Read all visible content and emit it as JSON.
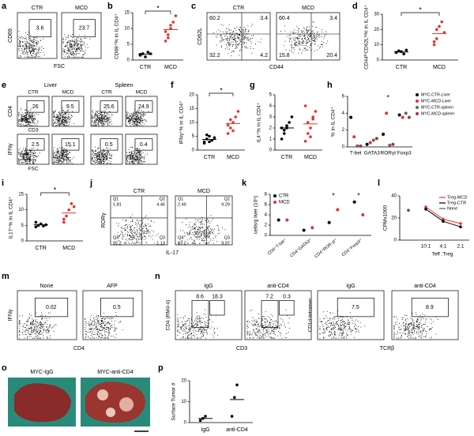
{
  "panels": {
    "a": {
      "label": "a",
      "plots": [
        {
          "title": "CTR",
          "gates": [
            3.6
          ]
        },
        {
          "title": "MCD",
          "gates": [
            23.7
          ]
        }
      ],
      "ylabel": "CD69",
      "xlabel": "FSC"
    },
    "b": {
      "label": "b",
      "ylabel": "CD69⁺% in IL CD4⁺",
      "groups": [
        "CTR",
        "MCD"
      ],
      "colors": [
        "#000000",
        "#e8312f"
      ],
      "values": [
        [
          1.5,
          2,
          1,
          2.5,
          2,
          1.8
        ],
        [
          6,
          8,
          10,
          12,
          14,
          9,
          7,
          11
        ]
      ],
      "ylim": [
        0,
        15
      ],
      "yticks": [
        0,
        5,
        10,
        15
      ],
      "significance": "*"
    },
    "c": {
      "label": "c",
      "plots": [
        {
          "title": "CTR",
          "gates": [
            60.2,
            3.4,
            32.2,
            4.2
          ]
        },
        {
          "title": "MCD",
          "gates": [
            60.4,
            3.4,
            15.8,
            20.4
          ]
        }
      ],
      "ylabel": "CD62L",
      "xlabel": "CD44"
    },
    "d": {
      "label": "d",
      "ylabel": "CD44ʰⁱCD62Lˡᵒ% in IL CD4⁺",
      "groups": [
        "CTR",
        "MCD"
      ],
      "colors": [
        "#000000",
        "#e8312f"
      ],
      "values": [
        [
          5,
          6,
          5.5,
          4,
          6.5,
          5
        ],
        [
          10,
          14,
          22,
          25,
          18,
          12,
          20
        ]
      ],
      "ylim": [
        0,
        30
      ],
      "yticks": [
        0,
        10,
        20,
        30
      ],
      "significance": "*"
    },
    "e": {
      "label": "e",
      "tissues": [
        "Liver",
        "Spleen"
      ],
      "top": [
        {
          "title": "CTR",
          "gates": [
            26
          ]
        },
        {
          "title": "MCD",
          "gates": [
            9.5
          ]
        },
        {
          "title": "CTR",
          "gates": [
            25.6
          ]
        },
        {
          "title": "MCD",
          "gates": [
            24.9
          ]
        }
      ],
      "bottom": [
        {
          "gates": [
            2.5
          ]
        },
        {
          "gates": [
            15.1
          ]
        },
        {
          "gates": [
            0.5
          ]
        },
        {
          "gates": [
            0.4
          ]
        }
      ],
      "top_ylabel": "CD4",
      "top_xlabel": "CD3",
      "bottom_ylabel": "IFNγ",
      "bottom_xlabel": "FSC"
    },
    "f": {
      "label": "f",
      "ylabel": "IFNγ⁺% in IL CD4⁺",
      "groups": [
        "CTR",
        "MCD"
      ],
      "colors": [
        "#000000",
        "#e8312f"
      ],
      "values": [
        [
          3,
          4,
          5,
          3.5,
          4.5,
          2.5,
          5.5,
          3
        ],
        [
          6,
          8,
          10,
          12,
          14,
          9,
          11,
          7
        ]
      ],
      "ylim": [
        0,
        20
      ],
      "yticks": [
        0,
        5,
        10,
        15,
        20
      ],
      "significance": "*"
    },
    "g": {
      "label": "g",
      "ylabel": "IL4⁺% in IL CD4⁺",
      "groups": [
        "CTR",
        "MCD"
      ],
      "colors": [
        "#000000",
        "#e8312f"
      ],
      "values": [
        [
          1,
          1.5,
          2,
          2.5,
          3,
          2,
          1.8,
          2.2
        ],
        [
          0.8,
          1.5,
          2,
          3,
          3.5,
          4,
          2.5,
          1.2,
          2.8
        ]
      ],
      "ylim": [
        0,
        5
      ],
      "yticks": [
        0,
        1,
        2,
        3,
        4,
        5
      ]
    },
    "h": {
      "label": "h",
      "ylabel": "% in IL CD4⁺",
      "categories": [
        "T-bet",
        "GATA3",
        "RORγt",
        "Foxp3"
      ],
      "series": [
        {
          "name": "MYC-CTR-Liver",
          "color": "#000000",
          "values": [
            3.5,
            0.3,
            1.5,
            3.8
          ]
        },
        {
          "name": "MYC-MCD-Liver",
          "color": "#e8312f",
          "values": [
            1.2,
            0.5,
            4,
            3.5
          ]
        },
        {
          "name": "MYC-CTR-spleen",
          "color": "#666666",
          "values": [
            0.1,
            0.8,
            0.2,
            4
          ]
        },
        {
          "name": "MYC-MCD-spleen",
          "color": "#b03030",
          "values": [
            0.1,
            1,
            0.3,
            3.5
          ]
        }
      ],
      "ylim": [
        0,
        6
      ],
      "yticks": [
        0,
        2,
        4,
        6
      ],
      "significance": [
        null,
        null,
        "*",
        null
      ]
    },
    "i": {
      "label": "i",
      "ylabel": "IL17⁺% in IL CD4⁺",
      "groups": [
        "CTR",
        "MCD"
      ],
      "colors": [
        "#000000",
        "#e8312f"
      ],
      "values": [
        [
          4.5,
          5,
          5.5,
          4.8,
          5.2,
          6
        ],
        [
          7,
          8,
          10,
          12,
          11,
          6
        ]
      ],
      "ylim": [
        0,
        15
      ],
      "yticks": [
        0,
        5,
        10,
        15
      ],
      "significance": "*"
    },
    "j": {
      "label": "j",
      "plots": [
        {
          "title": "CTR",
          "quadrants": [
            {
              "name": "Q1",
              "value": 1.81
            },
            {
              "name": "Q2",
              "value": 4.46
            },
            {
              "name": "Q4",
              "value": 92.2
            },
            {
              "name": "Q3",
              "value": 1.13
            }
          ]
        },
        {
          "title": "MCD",
          "quadrants": [
            {
              "name": "Q1",
              "value": 2.49
            },
            {
              "name": "Q2",
              "value": 9.29
            },
            {
              "name": "Q4",
              "value": 87.2
            },
            {
              "name": "Q3",
              "value": 9.97
            }
          ]
        }
      ],
      "ylabel": "RORγ",
      "xlabel": "IL-17"
    },
    "k": {
      "label": "k",
      "ylabel": "cells/g liver (10⁵)",
      "categories": [
        "CD4⁺T-bet⁺",
        "CD4⁺GATA3⁺",
        "CD4⁺ROR-γt⁺",
        "CD4⁺Foxp3⁺"
      ],
      "series": [
        {
          "name": "CTR",
          "color": "#000000",
          "values": [
            3,
            1,
            2.5,
            6.5
          ]
        },
        {
          "name": "MCD",
          "color": "#e8312f",
          "values": [
            3,
            1.5,
            5,
            4
          ]
        }
      ],
      "ylim": [
        0,
        8
      ],
      "yticks": [
        0,
        2,
        4,
        6,
        8
      ],
      "significance": [
        null,
        null,
        "*",
        "*"
      ]
    },
    "l": {
      "label": "l",
      "ylabel": "CPMx1000",
      "xlabel": "Teff :Treg",
      "categories": [
        null,
        "10:1",
        "4:1",
        "2:1"
      ],
      "series": [
        {
          "name": "Treg-MCD",
          "color": "#e8312f",
          "values": [
            null,
            30,
            19,
            15
          ]
        },
        {
          "name": "Treg-CTR",
          "color": "#000000",
          "values": [
            null,
            28,
            17,
            12
          ]
        },
        {
          "name": "None",
          "color": "#555555",
          "values": [
            27,
            null,
            null,
            null
          ]
        }
      ],
      "ylim": [
        0,
        40
      ],
      "yticks": [
        0,
        20,
        40
      ]
    },
    "m": {
      "label": "m",
      "plots": [
        {
          "title": "None",
          "gates": [
            0.02
          ]
        },
        {
          "title": "AFP",
          "gates": [
            0.5
          ]
        }
      ],
      "ylabel": "IFNγ",
      "xlabel": "CD4"
    },
    "n": {
      "label": "n",
      "plots": [
        {
          "title": "IgG",
          "gates": [
            8.6,
            18.3
          ]
        },
        {
          "title": "anti-CD4",
          "gates": [
            7.2,
            0.3
          ]
        },
        {
          "title": "IgG",
          "gates": [
            7.5
          ]
        },
        {
          "title": "anti-CD4",
          "gates": [
            8.9
          ]
        }
      ],
      "ylabels": [
        "CD4 (RM4-4)",
        "CD1d-tetramer"
      ],
      "xlabels": [
        "CD3",
        "TCRβ"
      ]
    },
    "o": {
      "label": "o",
      "titles": [
        "MYC-IgG",
        "MYC-anti-CD4"
      ]
    },
    "p": {
      "label": "p",
      "ylabel": "Surface Tumor #",
      "groups": [
        "IgG",
        "anti-CD4"
      ],
      "colors": [
        "#000000",
        "#000000"
      ],
      "values": [
        [
          1,
          2,
          3
        ],
        [
          3,
          12,
          18
        ]
      ],
      "ylim": [
        0,
        20
      ],
      "yticks": [
        0,
        10,
        20
      ]
    }
  }
}
